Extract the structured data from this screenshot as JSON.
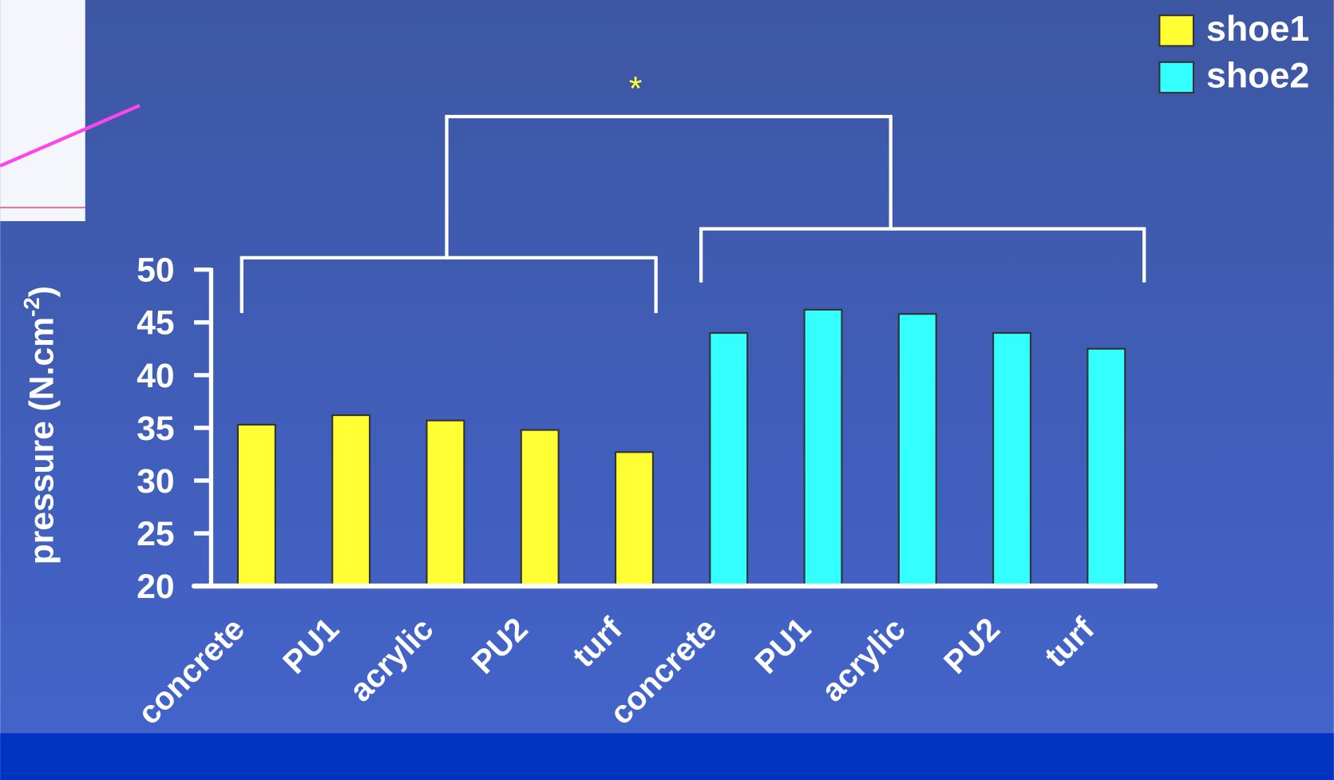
{
  "chart_data": {
    "type": "bar",
    "annotation": "*",
    "ylabel": {
      "text": "pressure (N.cm",
      "superscript": "-2",
      "suffix": ")"
    },
    "categories": [
      "concrete",
      "PU1",
      "acrylic",
      "PU2",
      "turf",
      "concrete",
      "PU1",
      "acrylic",
      "PU2",
      "turf"
    ],
    "series": [
      {
        "name": "shoe1",
        "color": "#ffff33",
        "values": [
          35.3,
          36.2,
          35.7,
          34.8,
          32.7,
          null,
          null,
          null,
          null,
          null
        ]
      },
      {
        "name": "shoe2",
        "color": "#33ffff",
        "values": [
          null,
          null,
          null,
          null,
          null,
          44.0,
          46.2,
          45.8,
          44.0,
          42.5
        ]
      }
    ],
    "ylim": [
      20,
      50
    ],
    "yticks": [
      20,
      25,
      30,
      35,
      40,
      45,
      50
    ],
    "legend": "top-right"
  }
}
